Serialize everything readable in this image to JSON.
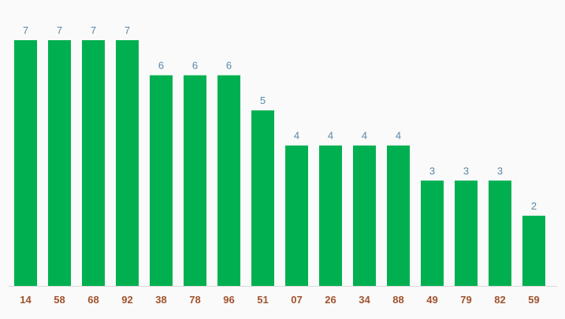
{
  "chart_data": {
    "type": "bar",
    "categories": [
      "14",
      "58",
      "68",
      "92",
      "38",
      "78",
      "96",
      "51",
      "07",
      "26",
      "34",
      "88",
      "49",
      "79",
      "82",
      "59"
    ],
    "values": [
      7,
      7,
      7,
      7,
      6,
      6,
      6,
      5,
      4,
      4,
      4,
      4,
      3,
      3,
      3,
      2
    ],
    "ylim": [
      0,
      7
    ],
    "grid": false,
    "legend": "none",
    "data_labels": true
  },
  "colors": {
    "bar": "#00b050",
    "value_label": "#5a87a8",
    "tick_label": "#a0522d",
    "background": "#fafafa"
  }
}
